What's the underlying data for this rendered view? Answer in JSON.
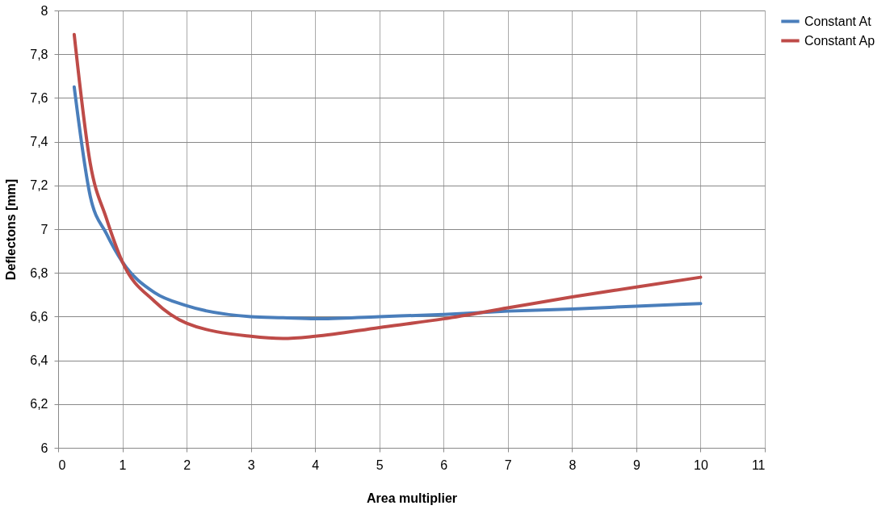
{
  "chart_data": {
    "type": "line",
    "xlabel": "Area multiplier",
    "ylabel": "Deflectons [mm]",
    "x": [
      0.25,
      0.5,
      0.75,
      1,
      1.5,
      2,
      3,
      3.5,
      4,
      5,
      6,
      7,
      8,
      9,
      10
    ],
    "series": [
      {
        "name": "Constant At",
        "color": "#4a7ebb",
        "values": [
          7.65,
          7.15,
          6.98,
          6.85,
          6.71,
          6.65,
          6.6,
          6.595,
          6.59,
          6.6,
          6.61,
          6.625,
          6.635,
          6.648,
          6.66
        ]
      },
      {
        "name": "Constant Ap",
        "color": "#be4b48",
        "values": [
          7.89,
          7.3,
          7.05,
          6.85,
          6.67,
          6.57,
          6.51,
          6.5,
          6.51,
          6.55,
          6.59,
          6.64,
          6.69,
          6.735,
          6.78
        ]
      }
    ],
    "xlim": [
      0,
      11
    ],
    "xticks": [
      0,
      1,
      2,
      3,
      4,
      5,
      6,
      7,
      8,
      9,
      10,
      11
    ],
    "ylim": [
      6,
      8
    ],
    "yticks": [
      6,
      {
        "value": 6.2,
        "label": "6,2"
      },
      {
        "value": 6.4,
        "label": "6,4"
      },
      {
        "value": 6.6,
        "label": "6,6"
      },
      {
        "value": 6.8,
        "label": "6,8"
      },
      7,
      {
        "value": 7.2,
        "label": "7,2"
      },
      {
        "value": 7.4,
        "label": "7,4"
      },
      {
        "value": 7.6,
        "label": "7,6"
      },
      {
        "value": 7.8,
        "label": "7,8"
      },
      8
    ],
    "grid": true,
    "legend": "right",
    "marker": "none",
    "line_style": "solid"
  }
}
